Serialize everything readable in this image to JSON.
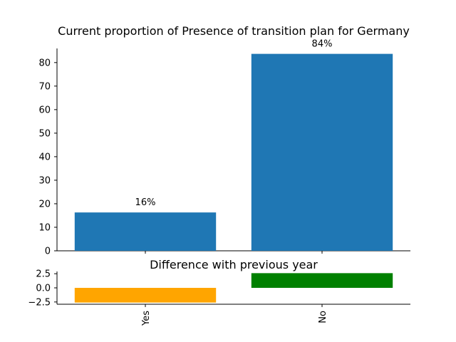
{
  "chart_data": [
    {
      "type": "bar",
      "title": "Current proportion of Presence of transition plan for Germany",
      "categories": [
        "Yes",
        "No"
      ],
      "values": [
        16.3,
        83.7
      ],
      "data_labels": [
        "16%",
        "84%"
      ],
      "bar_color": "#1f77b4",
      "ylim": [
        0,
        86
      ],
      "yticks": [
        0,
        10,
        20,
        30,
        40,
        50,
        60,
        70,
        80
      ],
      "ytick_labels": [
        "0",
        "10",
        "20",
        "30",
        "40",
        "50",
        "60",
        "70",
        "80"
      ],
      "xlabel": "",
      "ylabel": "",
      "grid": false
    },
    {
      "type": "bar",
      "title": "Difference with previous year",
      "categories": [
        "Yes",
        "No"
      ],
      "values": [
        -2.6,
        2.6
      ],
      "bar_colors": [
        "#ffa500",
        "#008000"
      ],
      "ylim": [
        -2.9,
        2.9
      ],
      "yticks": [
        -2.5,
        0.0,
        2.5
      ],
      "ytick_labels": [
        "−2.5",
        "0.0",
        "2.5"
      ],
      "xtick_labels": [
        "Yes",
        "No"
      ],
      "xlabel": "",
      "ylabel": "",
      "grid": false
    }
  ]
}
